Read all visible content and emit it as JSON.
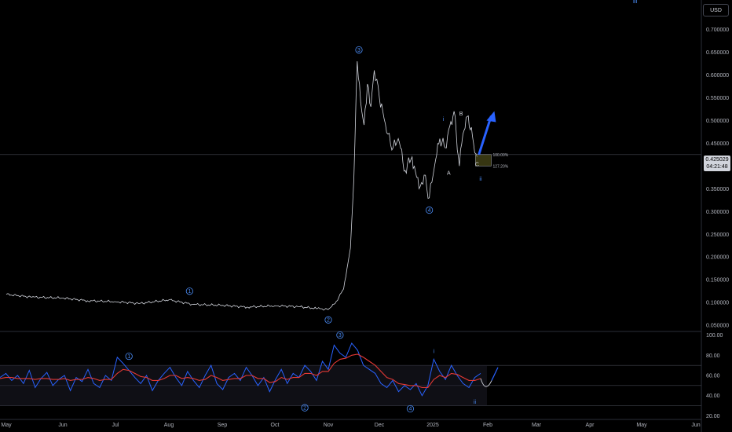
{
  "header": {
    "currency_button": "USD",
    "top_marker": "iii"
  },
  "last_price": {
    "value": "0.425029",
    "countdown": "04:21:48"
  },
  "colors": {
    "background": "#000000",
    "price_line": "#d1d4dc",
    "wave_label": "#4b8df8",
    "rsi_blue": "#2962ff",
    "rsi_red": "#e53935",
    "arrow": "#2962ff"
  },
  "chart_data": [
    {
      "type": "line",
      "y_scale": "linear",
      "x_ticks": [
        "May",
        "Jun",
        "Jul",
        "Aug",
        "Sep",
        "Oct",
        "Nov",
        "Dec",
        "2025",
        "Feb",
        "Mar",
        "Apr",
        "May",
        "Jun"
      ],
      "y_ticks": [
        "0.700000",
        "0.650000",
        "0.600000",
        "0.550000",
        "0.500000",
        "0.450000",
        "0.350000",
        "0.300000",
        "0.250000",
        "0.200000",
        "0.150000",
        "0.100000",
        "0.050000"
      ],
      "ylim": [
        0.04,
        0.73
      ],
      "x": [
        "2024-05-01",
        "2024-05-15",
        "2024-06-01",
        "2024-06-15",
        "2024-07-01",
        "2024-07-15",
        "2024-08-01",
        "2024-08-15",
        "2024-09-01",
        "2024-09-15",
        "2024-10-01",
        "2024-10-15",
        "2024-10-25",
        "2024-11-01",
        "2024-11-05",
        "2024-11-10",
        "2024-11-14",
        "2024-11-16",
        "2024-11-18",
        "2024-11-20",
        "2024-11-22",
        "2024-11-24",
        "2024-11-26",
        "2024-11-28",
        "2024-12-01",
        "2024-12-03",
        "2024-12-06",
        "2024-12-09",
        "2024-12-12",
        "2024-12-16",
        "2024-12-20",
        "2024-12-24",
        "2024-12-27",
        "2024-12-30",
        "2025-01-02",
        "2025-01-05",
        "2025-01-08",
        "2025-01-10",
        "2025-01-13",
        "2025-01-16",
        "2025-01-18",
        "2025-01-21",
        "2025-01-24",
        "2025-01-26"
      ],
      "y": [
        0.118,
        0.112,
        0.11,
        0.104,
        0.102,
        0.098,
        0.106,
        0.096,
        0.094,
        0.09,
        0.093,
        0.091,
        0.087,
        0.085,
        0.098,
        0.13,
        0.22,
        0.37,
        0.63,
        0.54,
        0.49,
        0.58,
        0.53,
        0.61,
        0.55,
        0.52,
        0.47,
        0.44,
        0.46,
        0.39,
        0.42,
        0.35,
        0.38,
        0.33,
        0.4,
        0.46,
        0.44,
        0.48,
        0.52,
        0.4,
        0.47,
        0.51,
        0.45,
        0.42
      ],
      "wave_labels": [
        {
          "text": "1",
          "x": "2024-08-13",
          "y": 0.125,
          "style": "circle"
        },
        {
          "text": "2",
          "x": "2024-11-01",
          "y": 0.062,
          "style": "circle"
        },
        {
          "text": "3",
          "x": "2024-11-19",
          "y": 0.655,
          "style": "circle"
        },
        {
          "text": "4",
          "x": "2024-12-30",
          "y": 0.303,
          "style": "circle"
        },
        {
          "text": "i",
          "x": "2025-01-07",
          "y": 0.503,
          "style": "blue"
        },
        {
          "text": "ii",
          "x": "2025-01-28",
          "y": 0.372,
          "style": "blue"
        },
        {
          "text": "A",
          "x": "2025-01-10",
          "y": 0.385,
          "style": "white"
        },
        {
          "text": "B",
          "x": "2025-01-17",
          "y": 0.515,
          "style": "white"
        },
        {
          "text": "C",
          "x": "2025-01-26",
          "y": 0.404,
          "style": "white"
        }
      ],
      "fib_levels": [
        {
          "label": "100.00%",
          "value": 0.425
        },
        {
          "label": "127.20%",
          "value": 0.4
        }
      ],
      "projection": {
        "from": {
          "x": "2025-01-27",
          "y": 0.425
        },
        "to": {
          "x": "2025-02-03",
          "y": 0.51
        }
      }
    },
    {
      "type": "line",
      "y_ticks": [
        "100.00",
        "80.00",
        "60.00",
        "40.00",
        "20.00"
      ],
      "ylim": [
        18,
        102
      ],
      "bands": [
        70,
        50,
        30
      ],
      "series": [
        {
          "values": [
            58,
            62,
            55,
            60,
            52,
            65,
            48,
            57,
            63,
            50,
            56,
            60,
            45,
            58,
            54,
            66,
            52,
            48,
            60,
            55,
            78,
            72,
            65,
            58,
            52,
            60,
            45,
            55,
            62,
            68,
            58,
            50,
            64,
            55,
            48,
            60,
            70,
            52,
            46,
            58,
            62,
            55,
            68,
            60,
            50,
            58,
            44,
            56,
            66,
            52,
            62,
            58,
            70,
            64,
            55,
            74,
            66,
            90,
            82,
            78,
            92,
            85,
            70,
            66,
            62,
            52,
            48,
            55,
            44,
            50,
            46,
            52,
            40,
            50,
            76,
            64,
            56,
            70,
            60,
            52,
            48,
            58,
            62
          ]
        },
        {
          "values": [
            57,
            58,
            58,
            57,
            57,
            57,
            56,
            57,
            57,
            56,
            56,
            57,
            55,
            56,
            56,
            58,
            57,
            55,
            56,
            56,
            62,
            66,
            65,
            62,
            59,
            58,
            55,
            55,
            57,
            60,
            60,
            57,
            58,
            57,
            55,
            56,
            60,
            58,
            55,
            56,
            57,
            57,
            60,
            60,
            57,
            57,
            53,
            54,
            58,
            56,
            58,
            58,
            62,
            62,
            60,
            64,
            64,
            72,
            76,
            77,
            80,
            81,
            78,
            74,
            70,
            64,
            58,
            56,
            52,
            51,
            50,
            50,
            48,
            48,
            56,
            60,
            58,
            62,
            61,
            58,
            55,
            55,
            57
          ]
        }
      ],
      "wave_labels": [
        {
          "text": "1",
          "idx": 22,
          "y": 79,
          "style": "circle"
        },
        {
          "text": "2",
          "idx": 52,
          "y": 28,
          "style": "circle"
        },
        {
          "text": "3",
          "idx": 58,
          "y": 100,
          "style": "circle"
        },
        {
          "text": "4",
          "idx": 70,
          "y": 27,
          "style": "circle"
        },
        {
          "text": "i",
          "idx": 74,
          "y": 84,
          "style": "blue"
        },
        {
          "text": "ii",
          "idx": 81,
          "y": 34,
          "style": "blue"
        }
      ]
    }
  ]
}
